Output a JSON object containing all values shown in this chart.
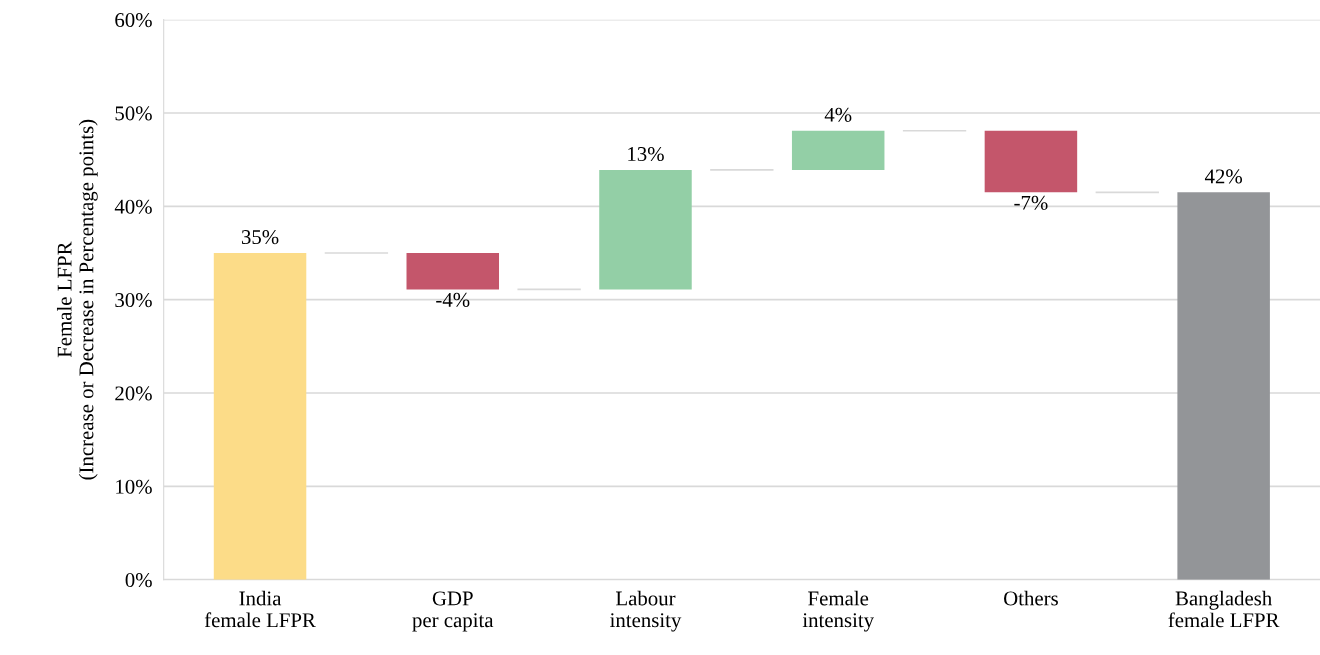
{
  "chart_data": {
    "type": "bar",
    "ylabel": "Female LFPR\n(Increase or Decrease in Percentage points)",
    "categories": [
      "India\nfemale LFPR",
      "GDP\nper capita",
      "Labour\nintensity",
      "Female\nintensity",
      "Others",
      "Bangladesh\nfemale LFPR"
    ],
    "values": [
      35,
      -3.9,
      12.8,
      4.2,
      -6.6,
      41.5
    ],
    "base": [
      0,
      35,
      31.1,
      43.9,
      48.1,
      0
    ],
    "colors": [
      "#fcdc88",
      "#c4566b",
      "#93cfa6",
      "#93cfa6",
      "#c4566b",
      "#939598"
    ],
    "value_labels": [
      "35%",
      "-4%",
      "13%",
      "4%",
      "-7%",
      "42%"
    ],
    "ylim": [
      0,
      60
    ],
    "yticks": [
      {
        "value": 0,
        "label": "0%"
      },
      {
        "value": 10,
        "label": "10%"
      },
      {
        "value": 20,
        "label": "20%"
      },
      {
        "value": 30,
        "label": "30%"
      },
      {
        "value": 40,
        "label": "40%"
      },
      {
        "value": 50,
        "label": "50%"
      },
      {
        "value": 60,
        "label": "60%"
      }
    ],
    "grid": "y",
    "legend": false
  }
}
